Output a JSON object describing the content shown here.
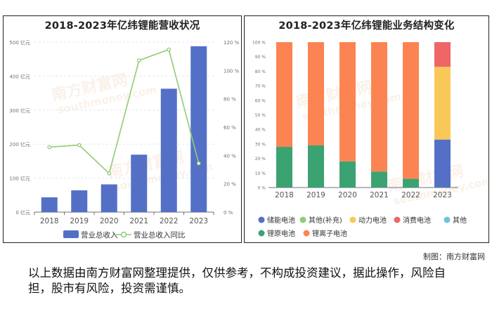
{
  "left_chart": {
    "title": "2018-2023年亿纬锂能营收状况"
  },
  "right_chart": {
    "title": "2018-2023年亿纬锂能业务结构变化"
  },
  "credit": "制图：南方财富网",
  "disclaimer": "以上数据由南方财富网整理提供，仅供参考，不构成投资建议，据此操作，风险自担，股市有风险，投资需谨慎。",
  "watermark": {
    "cn": "南方财富网",
    "en": "southmoney.com"
  },
  "colors": {
    "revenue_bar": "#5470c6",
    "growth_line": "#91cc75",
    "storage": "#5470c6",
    "other_supp": "#91cc75",
    "power": "#fac858",
    "consumer": "#ee6666",
    "other": "#73c0de",
    "lithium_primary": "#3ba272",
    "lithium_ion": "#fc8452"
  },
  "chart_data": [
    {
      "type": "bar",
      "title": "2018-2023年亿纬锂能营收状况",
      "categories": [
        "2018",
        "2019",
        "2020",
        "2021",
        "2022",
        "2023"
      ],
      "series": [
        {
          "name": "营业总收入",
          "type": "bar",
          "axis": "left",
          "values": [
            43.5,
            64.1,
            81.6,
            169.0,
            363.0,
            488.0
          ]
        },
        {
          "name": "营业总收入同比",
          "type": "line",
          "axis": "right",
          "values": [
            45.9,
            47.3,
            27.3,
            107.1,
            114.8,
            34.4
          ]
        }
      ],
      "y_left": {
        "min": 0,
        "max": 500,
        "ticks": [
          "0 亿元",
          "100 亿元",
          "200 亿元",
          "300 亿元",
          "400 亿元",
          "500 亿元"
        ]
      },
      "y_right": {
        "min": 0,
        "max": 120,
        "ticks": [
          "0 %",
          "20 %",
          "40 %",
          "60 %",
          "80 %",
          "100 %",
          "120 %"
        ]
      },
      "grid": true,
      "legend": "bottom"
    },
    {
      "type": "bar",
      "stacked": true,
      "title": "2018-2023年亿纬锂能业务结构变化",
      "categories": [
        "2018",
        "2019",
        "2020",
        "2021",
        "2022",
        "2023"
      ],
      "series": [
        {
          "name": "储能电池",
          "values": [
            0,
            0,
            0,
            0,
            0,
            33
          ]
        },
        {
          "name": "其他(补充)",
          "values": [
            0,
            0,
            0,
            0,
            0,
            0
          ]
        },
        {
          "name": "动力电池",
          "values": [
            0,
            0,
            0,
            0,
            0,
            50
          ]
        },
        {
          "name": "消费电池",
          "values": [
            0,
            0,
            0,
            0,
            0,
            17
          ]
        },
        {
          "name": "其他",
          "values": [
            0,
            0,
            0,
            0,
            0,
            0
          ]
        },
        {
          "name": "锂原电池",
          "values": [
            28,
            29,
            18,
            11,
            6,
            0
          ]
        },
        {
          "name": "锂离子电池",
          "values": [
            72,
            71,
            82,
            89,
            94,
            0
          ]
        }
      ],
      "y": {
        "min": 0,
        "max": 100,
        "ticks": [
          "0 %",
          "10 %",
          "20 %",
          "30 %",
          "40 %",
          "50 %",
          "60 %",
          "70 %",
          "80 %",
          "90 %",
          "100 %"
        ]
      },
      "grid": false,
      "legend": "bottom"
    }
  ]
}
